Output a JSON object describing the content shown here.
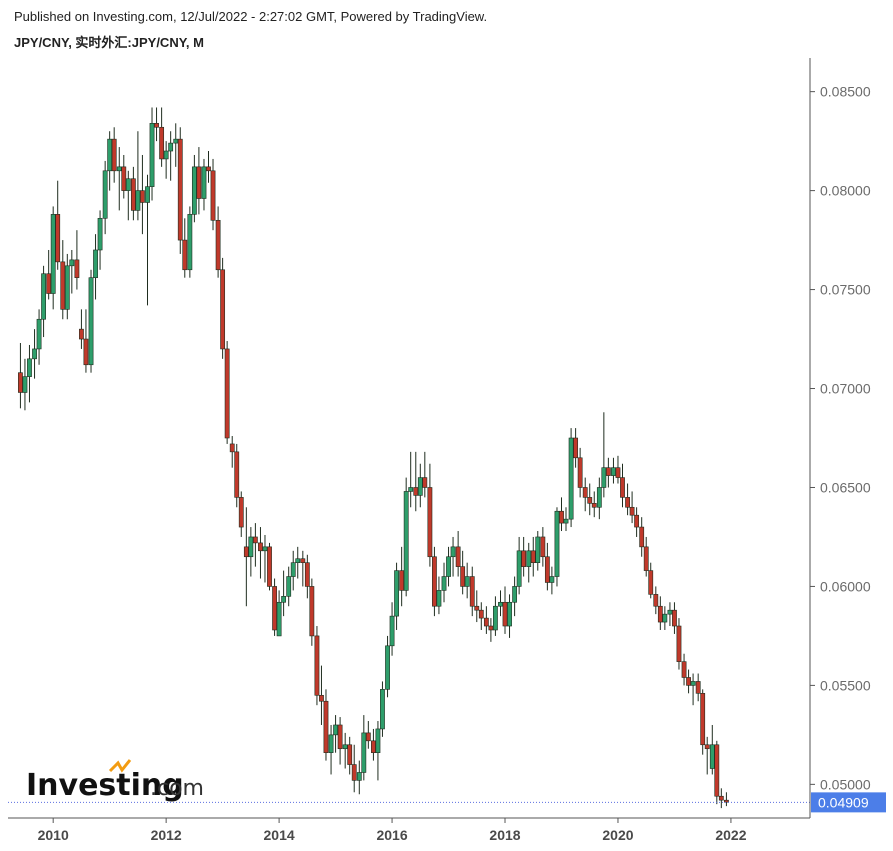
{
  "header": {
    "publish_line": "Published on Investing.com, 12/Jul/2022 - 2:27:02 GMT, Powered by TradingView.",
    "symbol_line": "JPY/CNY, 实时外汇:JPY/CNY, M"
  },
  "logo": {
    "brand": "Investing",
    "suffix": ".com"
  },
  "colors": {
    "up": "#2e9e6b",
    "down": "#c0392b",
    "wick": "#1f2d1f",
    "price_tag": "#4c7ee8",
    "axis": "#555555"
  },
  "chart_data": {
    "type": "candlestick",
    "interval": "M",
    "ylim": [
      0.0483,
      0.0867
    ],
    "xlim": [
      2009.2,
      2023.4
    ],
    "y_ticks": [
      "0.05000",
      "0.05500",
      "0.06000",
      "0.06500",
      "0.07000",
      "0.07500",
      "0.08000",
      "0.08500"
    ],
    "x_ticks": [
      "2010",
      "2012",
      "2014",
      "2016",
      "2018",
      "2020",
      "2022"
    ],
    "last_price": "0.04909",
    "candles": [
      [
        2009.42,
        0.0708,
        0.0723,
        0.069,
        0.0698
      ],
      [
        2009.5,
        0.0698,
        0.0715,
        0.0689,
        0.0706
      ],
      [
        2009.58,
        0.0706,
        0.0722,
        0.0693,
        0.0715
      ],
      [
        2009.67,
        0.0715,
        0.073,
        0.0705,
        0.072
      ],
      [
        2009.75,
        0.072,
        0.074,
        0.0712,
        0.0735
      ],
      [
        2009.83,
        0.0735,
        0.0762,
        0.0726,
        0.0758
      ],
      [
        2009.92,
        0.0758,
        0.077,
        0.0745,
        0.0748
      ],
      [
        2010.0,
        0.0748,
        0.0792,
        0.074,
        0.0788
      ],
      [
        2010.08,
        0.0788,
        0.0805,
        0.076,
        0.0764
      ],
      [
        2010.17,
        0.0764,
        0.0775,
        0.0735,
        0.074
      ],
      [
        2010.25,
        0.074,
        0.0768,
        0.0735,
        0.0762
      ],
      [
        2010.33,
        0.0762,
        0.077,
        0.0748,
        0.0765
      ],
      [
        2010.42,
        0.0765,
        0.078,
        0.075,
        0.0756
      ],
      [
        2010.5,
        0.073,
        0.074,
        0.072,
        0.0725
      ],
      [
        2010.58,
        0.0725,
        0.074,
        0.0708,
        0.0712
      ],
      [
        2010.67,
        0.0712,
        0.076,
        0.0708,
        0.0756
      ],
      [
        2010.75,
        0.0756,
        0.0778,
        0.0745,
        0.077
      ],
      [
        2010.83,
        0.077,
        0.079,
        0.076,
        0.0786
      ],
      [
        2010.92,
        0.0786,
        0.0815,
        0.0778,
        0.081
      ],
      [
        2011.0,
        0.081,
        0.083,
        0.08,
        0.0826
      ],
      [
        2011.08,
        0.0826,
        0.0832,
        0.0804,
        0.081
      ],
      [
        2011.17,
        0.081,
        0.0822,
        0.079,
        0.0812
      ],
      [
        2011.25,
        0.0812,
        0.0818,
        0.0796,
        0.08
      ],
      [
        2011.33,
        0.08,
        0.081,
        0.0785,
        0.0806
      ],
      [
        2011.42,
        0.0806,
        0.0812,
        0.0785,
        0.079
      ],
      [
        2011.5,
        0.079,
        0.083,
        0.0785,
        0.08
      ],
      [
        2011.58,
        0.08,
        0.0818,
        0.0778,
        0.0794
      ],
      [
        2011.67,
        0.0794,
        0.0808,
        0.0742,
        0.0802
      ],
      [
        2011.75,
        0.0802,
        0.0842,
        0.0795,
        0.0834
      ],
      [
        2011.83,
        0.0834,
        0.0842,
        0.0825,
        0.0832
      ],
      [
        2011.92,
        0.0832,
        0.0842,
        0.0812,
        0.0816
      ],
      [
        2012.0,
        0.0816,
        0.0825,
        0.0806,
        0.082
      ],
      [
        2012.08,
        0.082,
        0.083,
        0.0805,
        0.0824
      ],
      [
        2012.17,
        0.0824,
        0.0834,
        0.0812,
        0.0826
      ],
      [
        2012.25,
        0.0826,
        0.0832,
        0.0768,
        0.0775
      ],
      [
        2012.33,
        0.0775,
        0.0786,
        0.0756,
        0.076
      ],
      [
        2012.42,
        0.076,
        0.0792,
        0.0756,
        0.0788
      ],
      [
        2012.5,
        0.0788,
        0.0818,
        0.0784,
        0.0812
      ],
      [
        2012.58,
        0.0812,
        0.0822,
        0.0788,
        0.0796
      ],
      [
        2012.67,
        0.0796,
        0.0816,
        0.079,
        0.0812
      ],
      [
        2012.75,
        0.0812,
        0.082,
        0.0804,
        0.081
      ],
      [
        2012.83,
        0.081,
        0.0816,
        0.078,
        0.0785
      ],
      [
        2012.92,
        0.0785,
        0.0792,
        0.0756,
        0.076
      ],
      [
        2013.0,
        0.076,
        0.0766,
        0.0715,
        0.072
      ],
      [
        2013.08,
        0.072,
        0.0724,
        0.0672,
        0.0675
      ],
      [
        2013.17,
        0.0672,
        0.0676,
        0.066,
        0.0668
      ],
      [
        2013.25,
        0.0668,
        0.0672,
        0.064,
        0.0645
      ],
      [
        2013.33,
        0.0645,
        0.0648,
        0.0625,
        0.063
      ],
      [
        2013.42,
        0.062,
        0.064,
        0.059,
        0.0615
      ],
      [
        2013.5,
        0.0615,
        0.063,
        0.0605,
        0.0625
      ],
      [
        2013.58,
        0.0625,
        0.0632,
        0.061,
        0.0622
      ],
      [
        2013.67,
        0.0622,
        0.063,
        0.0604,
        0.0618
      ],
      [
        2013.75,
        0.0618,
        0.0626,
        0.0602,
        0.062
      ],
      [
        2013.83,
        0.062,
        0.0622,
        0.0598,
        0.06
      ],
      [
        2013.92,
        0.06,
        0.0604,
        0.0575,
        0.0578
      ],
      [
        2014.0,
        0.0575,
        0.0598,
        0.0575,
        0.0592
      ],
      [
        2014.08,
        0.0592,
        0.0608,
        0.0585,
        0.0595
      ],
      [
        2014.17,
        0.0595,
        0.061,
        0.059,
        0.0605
      ],
      [
        2014.25,
        0.0605,
        0.0618,
        0.0598,
        0.0612
      ],
      [
        2014.33,
        0.0612,
        0.062,
        0.0604,
        0.0614
      ],
      [
        2014.42,
        0.0614,
        0.0618,
        0.06,
        0.0612
      ],
      [
        2014.5,
        0.0612,
        0.0616,
        0.0594,
        0.06
      ],
      [
        2014.58,
        0.06,
        0.0604,
        0.057,
        0.0575
      ],
      [
        2014.67,
        0.0575,
        0.058,
        0.054,
        0.0545
      ],
      [
        2014.75,
        0.0545,
        0.056,
        0.053,
        0.0542
      ],
      [
        2014.83,
        0.0542,
        0.0548,
        0.0512,
        0.0516
      ],
      [
        2014.92,
        0.0516,
        0.053,
        0.0505,
        0.0525
      ],
      [
        2015.0,
        0.0525,
        0.0535,
        0.0516,
        0.053
      ],
      [
        2015.08,
        0.053,
        0.0534,
        0.051,
        0.0518
      ],
      [
        2015.17,
        0.0518,
        0.0526,
        0.0508,
        0.052
      ],
      [
        2015.25,
        0.052,
        0.0524,
        0.0505,
        0.051
      ],
      [
        2015.33,
        0.051,
        0.052,
        0.0496,
        0.0502
      ],
      [
        2015.42,
        0.0502,
        0.0512,
        0.0495,
        0.0506
      ],
      [
        2015.5,
        0.0506,
        0.0535,
        0.0502,
        0.0526
      ],
      [
        2015.58,
        0.0526,
        0.0532,
        0.0518,
        0.0522
      ],
      [
        2015.67,
        0.0522,
        0.0528,
        0.0512,
        0.0516
      ],
      [
        2015.75,
        0.0516,
        0.0532,
        0.0502,
        0.0528
      ],
      [
        2015.83,
        0.0528,
        0.0552,
        0.0524,
        0.0548
      ],
      [
        2015.92,
        0.0548,
        0.0575,
        0.0544,
        0.057
      ],
      [
        2016.0,
        0.057,
        0.0592,
        0.0565,
        0.0585
      ],
      [
        2016.08,
        0.0585,
        0.0612,
        0.0578,
        0.0608
      ],
      [
        2016.17,
        0.0608,
        0.062,
        0.059,
        0.0598
      ],
      [
        2016.25,
        0.0598,
        0.0655,
        0.0595,
        0.0648
      ],
      [
        2016.33,
        0.0648,
        0.0668,
        0.064,
        0.065
      ],
      [
        2016.42,
        0.065,
        0.0668,
        0.0638,
        0.0646
      ],
      [
        2016.5,
        0.0646,
        0.0662,
        0.064,
        0.0655
      ],
      [
        2016.58,
        0.0655,
        0.0668,
        0.0645,
        0.065
      ],
      [
        2016.67,
        0.065,
        0.0662,
        0.061,
        0.0615
      ],
      [
        2016.75,
        0.0615,
        0.062,
        0.0585,
        0.059
      ],
      [
        2016.83,
        0.059,
        0.0605,
        0.0586,
        0.0598
      ],
      [
        2016.92,
        0.0598,
        0.0612,
        0.0592,
        0.0605
      ],
      [
        2017.0,
        0.0605,
        0.062,
        0.06,
        0.0615
      ],
      [
        2017.08,
        0.0615,
        0.0625,
        0.0605,
        0.062
      ],
      [
        2017.17,
        0.062,
        0.0628,
        0.0605,
        0.061
      ],
      [
        2017.25,
        0.061,
        0.0618,
        0.0596,
        0.06
      ],
      [
        2017.33,
        0.06,
        0.0612,
        0.0594,
        0.0605
      ],
      [
        2017.42,
        0.0605,
        0.061,
        0.0585,
        0.059
      ],
      [
        2017.5,
        0.059,
        0.0598,
        0.0582,
        0.0588
      ],
      [
        2017.58,
        0.0588,
        0.0592,
        0.0578,
        0.0584
      ],
      [
        2017.67,
        0.0584,
        0.059,
        0.0576,
        0.058
      ],
      [
        2017.75,
        0.058,
        0.0584,
        0.0572,
        0.0578
      ],
      [
        2017.83,
        0.0578,
        0.0595,
        0.0575,
        0.059
      ],
      [
        2017.92,
        0.059,
        0.0598,
        0.0585,
        0.0592
      ],
      [
        2018.0,
        0.0592,
        0.06,
        0.0576,
        0.058
      ],
      [
        2018.08,
        0.058,
        0.0596,
        0.0574,
        0.0592
      ],
      [
        2018.17,
        0.0592,
        0.0605,
        0.0585,
        0.06
      ],
      [
        2018.25,
        0.06,
        0.0625,
        0.0596,
        0.0618
      ],
      [
        2018.33,
        0.0618,
        0.0625,
        0.0605,
        0.061
      ],
      [
        2018.42,
        0.061,
        0.0622,
        0.0602,
        0.0618
      ],
      [
        2018.5,
        0.0618,
        0.0625,
        0.0605,
        0.0612
      ],
      [
        2018.58,
        0.0612,
        0.0628,
        0.0608,
        0.0625
      ],
      [
        2018.67,
        0.0625,
        0.063,
        0.061,
        0.0615
      ],
      [
        2018.75,
        0.0615,
        0.0622,
        0.0598,
        0.0602
      ],
      [
        2018.83,
        0.0602,
        0.061,
        0.0596,
        0.0605
      ],
      [
        2018.92,
        0.0605,
        0.064,
        0.06,
        0.0638
      ],
      [
        2019.0,
        0.0638,
        0.0645,
        0.0628,
        0.0632
      ],
      [
        2019.08,
        0.0632,
        0.064,
        0.0628,
        0.0634
      ],
      [
        2019.17,
        0.0634,
        0.068,
        0.063,
        0.0675
      ],
      [
        2019.25,
        0.0675,
        0.068,
        0.066,
        0.0665
      ],
      [
        2019.33,
        0.0665,
        0.067,
        0.0645,
        0.065
      ],
      [
        2019.42,
        0.065,
        0.0655,
        0.0638,
        0.0645
      ],
      [
        2019.5,
        0.0645,
        0.0652,
        0.0636,
        0.0642
      ],
      [
        2019.58,
        0.0642,
        0.0648,
        0.0635,
        0.064
      ],
      [
        2019.67,
        0.064,
        0.0655,
        0.0634,
        0.065
      ],
      [
        2019.75,
        0.065,
        0.0688,
        0.0645,
        0.066
      ],
      [
        2019.83,
        0.066,
        0.0665,
        0.065,
        0.0656
      ],
      [
        2019.92,
        0.0656,
        0.0665,
        0.0652,
        0.066
      ],
      [
        2020.0,
        0.066,
        0.0666,
        0.0652,
        0.0655
      ],
      [
        2020.08,
        0.0655,
        0.0662,
        0.064,
        0.0645
      ],
      [
        2020.17,
        0.0645,
        0.0652,
        0.0636,
        0.064
      ],
      [
        2020.25,
        0.064,
        0.0648,
        0.0632,
        0.0636
      ],
      [
        2020.33,
        0.0636,
        0.064,
        0.0625,
        0.063
      ],
      [
        2020.42,
        0.063,
        0.0635,
        0.0615,
        0.062
      ],
      [
        2020.5,
        0.062,
        0.0625,
        0.0605,
        0.0608
      ],
      [
        2020.58,
        0.0608,
        0.0612,
        0.0594,
        0.0596
      ],
      [
        2020.67,
        0.0596,
        0.06,
        0.0586,
        0.059
      ],
      [
        2020.75,
        0.059,
        0.0595,
        0.0578,
        0.0582
      ],
      [
        2020.83,
        0.0582,
        0.059,
        0.0578,
        0.0586
      ],
      [
        2020.92,
        0.0586,
        0.0592,
        0.058,
        0.0588
      ],
      [
        2021.0,
        0.0588,
        0.0592,
        0.0576,
        0.058
      ],
      [
        2021.08,
        0.058,
        0.0584,
        0.0558,
        0.0562
      ],
      [
        2021.17,
        0.0562,
        0.0566,
        0.055,
        0.0554
      ],
      [
        2021.25,
        0.0554,
        0.0558,
        0.0546,
        0.055
      ],
      [
        2021.33,
        0.055,
        0.0556,
        0.054,
        0.0552
      ],
      [
        2021.42,
        0.0552,
        0.0556,
        0.0542,
        0.0546
      ],
      [
        2021.5,
        0.0546,
        0.0548,
        0.0515,
        0.052
      ],
      [
        2021.58,
        0.052,
        0.0524,
        0.0505,
        0.0518
      ],
      [
        2021.67,
        0.0508,
        0.053,
        0.0505,
        0.052
      ],
      [
        2021.75,
        0.052,
        0.0522,
        0.049,
        0.0494
      ],
      [
        2021.83,
        0.0494,
        0.0498,
        0.0488,
        0.0492
      ],
      [
        2021.92,
        0.0492,
        0.0496,
        0.0489,
        0.0491
      ]
    ]
  }
}
